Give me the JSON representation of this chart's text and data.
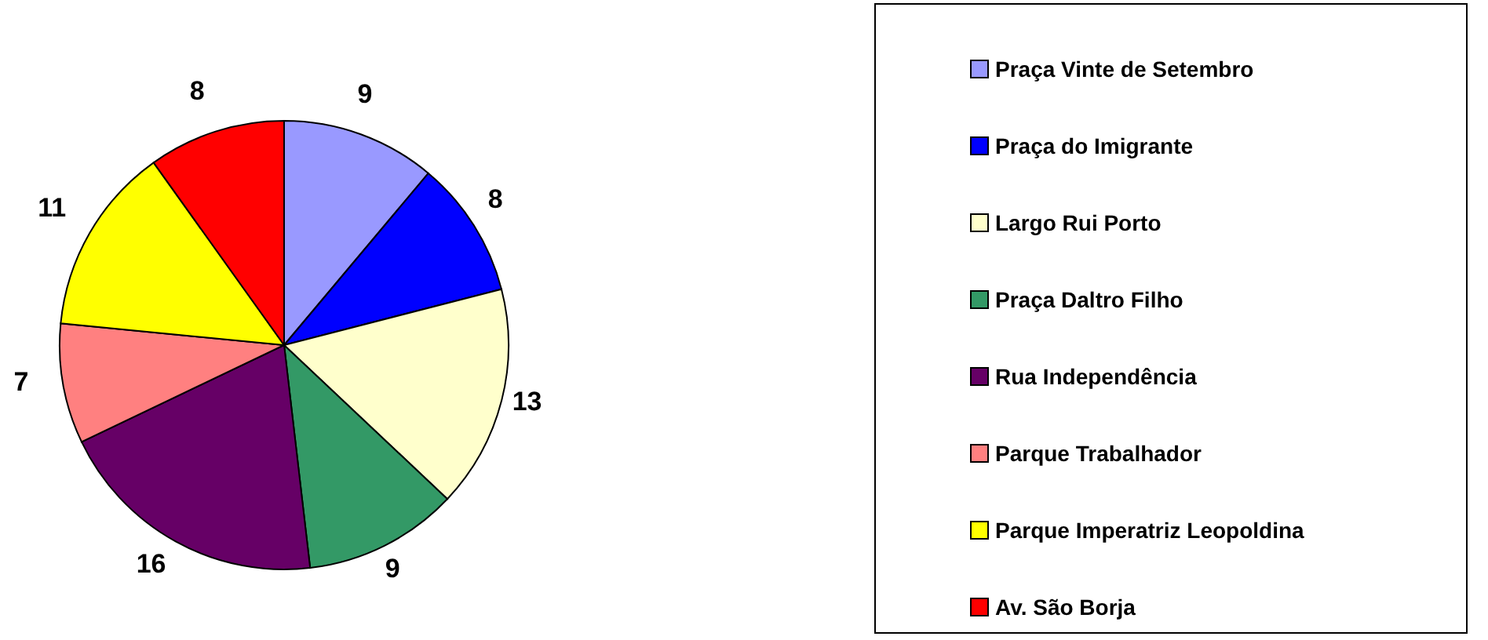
{
  "chart_data": {
    "type": "pie",
    "categories": [
      "Praça Vinte de Setembro",
      "Praça do Imigrante",
      "Largo Rui Porto",
      "Praça Daltro Filho",
      "Rua Independência",
      "Parque Trabalhador",
      "Parque Imperatriz Leopoldina",
      "Av. São Borja"
    ],
    "values": [
      9,
      8,
      13,
      9,
      16,
      7,
      11,
      8
    ],
    "colors": [
      "#9999ff",
      "#0000ff",
      "#ffffcc",
      "#339966",
      "#660066",
      "#ff8080",
      "#ffff00",
      "#ff0000"
    ],
    "data_labels": true,
    "legend": "right"
  }
}
